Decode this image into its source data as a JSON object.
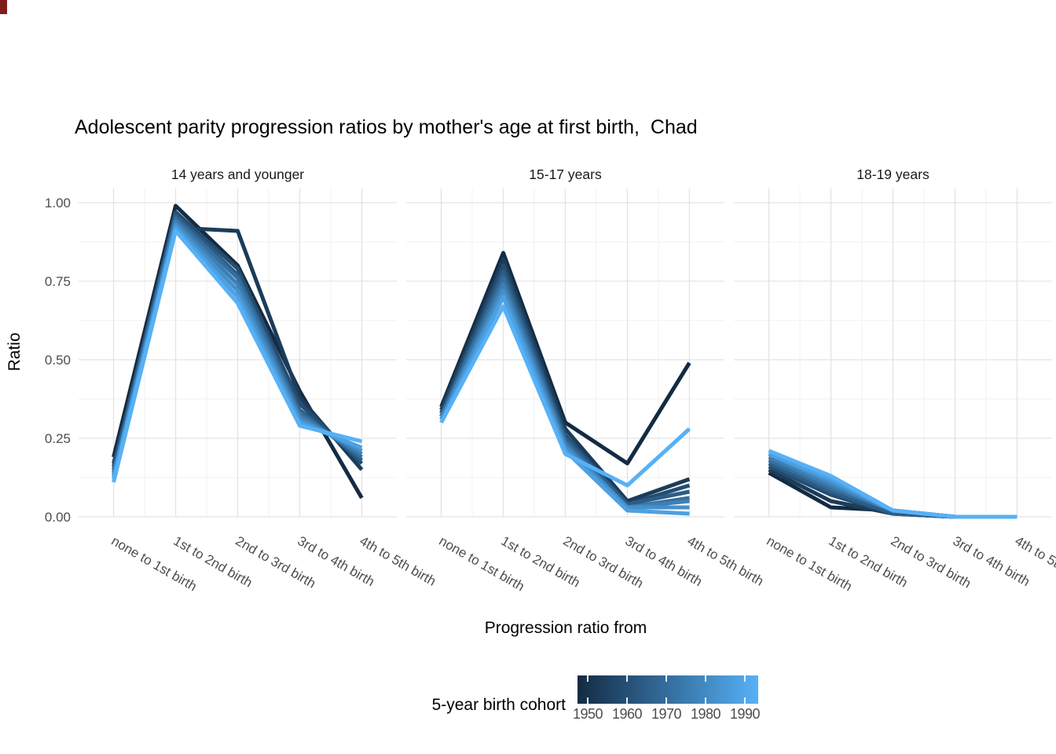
{
  "title": "Adolescent parity progression ratios by mother's age at first birth,  Chad",
  "axes": {
    "y_label": "Ratio",
    "x_label": "Progression ratio from",
    "y_ticks": [
      "1.00",
      "0.75",
      "0.50",
      "0.25",
      "0.00"
    ],
    "y_tick_values": [
      1.0,
      0.75,
      0.5,
      0.25,
      0.0
    ]
  },
  "legend": {
    "title": "5-year birth cohort",
    "ticks": [
      "1950",
      "1960",
      "1970",
      "1980",
      "1990"
    ],
    "gradient_start": "#132B43",
    "gradient_end": "#56B1F7"
  },
  "chart_data": {
    "type": "line",
    "title": "Adolescent parity progression ratios by mother's age at first birth,  Chad",
    "xlabel": "Progression ratio from",
    "ylabel": "Ratio",
    "ylim": [
      0,
      1
    ],
    "grid": true,
    "legend_position": "bottom",
    "categories": [
      "none to 1st birth",
      "1st to 2nd birth",
      "2nd to 3rd birth",
      "3rd to 4th birth",
      "4th to 5th birth"
    ],
    "color_scale": {
      "min": 1950,
      "max": 1990,
      "start": "#132B43",
      "end": "#56B1F7"
    },
    "facets": [
      {
        "title": "14 years and younger",
        "series": [
          {
            "name": "1950",
            "year": 1950,
            "values": [
              0.19,
              0.99,
              0.8,
              0.4,
              0.06
            ]
          },
          {
            "name": "1955",
            "year": 1955,
            "values": [
              0.17,
              0.92,
              0.91,
              0.38,
              0.15
            ]
          },
          {
            "name": "1960",
            "year": 1960,
            "values": [
              0.16,
              0.97,
              0.79,
              0.36,
              0.17
            ]
          },
          {
            "name": "1965",
            "year": 1965,
            "values": [
              0.15,
              0.96,
              0.77,
              0.34,
              0.18
            ]
          },
          {
            "name": "1970",
            "year": 1970,
            "values": [
              0.14,
              0.95,
              0.76,
              0.33,
              0.19
            ]
          },
          {
            "name": "1975",
            "year": 1975,
            "values": [
              0.13,
              0.94,
              0.74,
              0.32,
              0.2
            ]
          },
          {
            "name": "1980",
            "year": 1980,
            "values": [
              0.13,
              0.93,
              0.72,
              0.31,
              0.21
            ]
          },
          {
            "name": "1985",
            "year": 1985,
            "values": [
              0.12,
              0.92,
              0.7,
              0.3,
              0.22
            ]
          },
          {
            "name": "1990",
            "year": 1990,
            "values": [
              0.11,
              0.91,
              0.68,
              0.29,
              0.24
            ]
          }
        ]
      },
      {
        "title": "15-17 years",
        "series": [
          {
            "name": "1950",
            "year": 1950,
            "values": [
              0.35,
              0.84,
              0.3,
              0.17,
              0.49
            ]
          },
          {
            "name": "1955",
            "year": 1955,
            "values": [
              0.34,
              0.82,
              0.28,
              0.05,
              0.12
            ]
          },
          {
            "name": "1960",
            "year": 1960,
            "values": [
              0.33,
              0.8,
              0.26,
              0.04,
              0.1
            ]
          },
          {
            "name": "1965",
            "year": 1965,
            "values": [
              0.32,
              0.78,
              0.25,
              0.04,
              0.08
            ]
          },
          {
            "name": "1970",
            "year": 1970,
            "values": [
              0.32,
              0.76,
              0.24,
              0.03,
              0.06
            ]
          },
          {
            "name": "1975",
            "year": 1975,
            "values": [
              0.31,
              0.74,
              0.23,
              0.03,
              0.05
            ]
          },
          {
            "name": "1980",
            "year": 1980,
            "values": [
              0.31,
              0.72,
              0.22,
              0.03,
              0.03
            ]
          },
          {
            "name": "1985",
            "year": 1985,
            "values": [
              0.3,
              0.7,
              0.21,
              0.02,
              0.01
            ]
          },
          {
            "name": "1990",
            "year": 1990,
            "values": [
              0.3,
              0.67,
              0.2,
              0.1,
              0.28
            ]
          }
        ]
      },
      {
        "title": "18-19 years",
        "series": [
          {
            "name": "1950",
            "year": 1950,
            "values": [
              0.14,
              0.03,
              0.02,
              0.0,
              0.0
            ]
          },
          {
            "name": "1955",
            "year": 1955,
            "values": [
              0.15,
              0.05,
              0.01,
              0.0,
              0.0
            ]
          },
          {
            "name": "1960",
            "year": 1960,
            "values": [
              0.16,
              0.07,
              0.01,
              0.0,
              0.0
            ]
          },
          {
            "name": "1965",
            "year": 1965,
            "values": [
              0.17,
              0.08,
              0.01,
              0.0,
              0.0
            ]
          },
          {
            "name": "1970",
            "year": 1970,
            "values": [
              0.18,
              0.09,
              0.02,
              0.0,
              0.0
            ]
          },
          {
            "name": "1975",
            "year": 1975,
            "values": [
              0.19,
              0.1,
              0.02,
              0.0,
              0.0
            ]
          },
          {
            "name": "1980",
            "year": 1980,
            "values": [
              0.2,
              0.11,
              0.02,
              0.0,
              0.0
            ]
          },
          {
            "name": "1985",
            "year": 1985,
            "values": [
              0.2,
              0.12,
              0.02,
              0.0,
              0.0
            ]
          },
          {
            "name": "1990",
            "year": 1990,
            "values": [
              0.21,
              0.13,
              0.02,
              0.0,
              0.0
            ]
          }
        ]
      }
    ]
  }
}
